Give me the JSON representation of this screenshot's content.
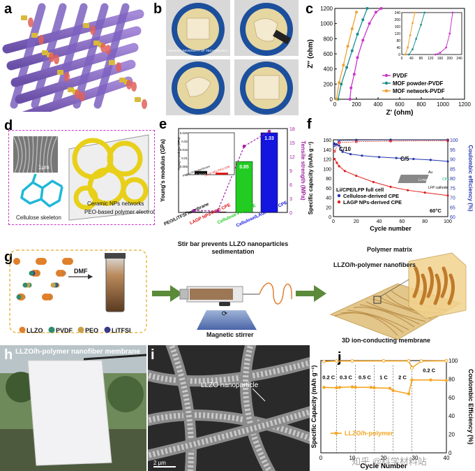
{
  "panel_letters": {
    "a": "a",
    "b": "b",
    "c": "c",
    "d": "d",
    "e": "e",
    "f": "f",
    "g": "g",
    "h": "h",
    "i": "i",
    "j": "j"
  },
  "panel_b": {
    "seal_text": "WUHAN UNIVERSITY OF TECHNOLOGY"
  },
  "panel_d": {
    "scale": "1μm",
    "cellulose_label": "Cellulose skeleton",
    "ceramic_label": "Ceramic NPs networks",
    "peo_label": "PEO-based polymer electrolyte"
  },
  "panel_g": {
    "legend": [
      "LLZO",
      "PVDF",
      "PEO",
      "LiTFSI"
    ],
    "dmf": "DMF",
    "stir_text": "Stir bar prevents LLZO nanoparticles sedimentation",
    "magnetic": "Magnetic stirrer",
    "polymer_matrix": "Polymer matrix",
    "nanofibers": "LLZO/h-polymer nanofibers",
    "membrane3d": "3D ion-conducting membrane",
    "colors": {
      "LLZO": "#e0802a",
      "PVDF": "#2e8c6e",
      "PEO": "#c8a04a",
      "LiTFSI": "#3a3a8a"
    }
  },
  "panel_h": {
    "title": "LLZO/h-polymer nanofiber membrane"
  },
  "panel_i": {
    "label": "LLZO nanoparticle",
    "scale": "2 μm"
  },
  "watermark": "知乎 @科学材料站",
  "chart_data": [
    {
      "panel": "c",
      "type": "line",
      "xlabel": "Z' (ohm)",
      "ylabel": "Z'' (ohm)",
      "xlim": [
        0,
        1200
      ],
      "ylim": [
        0,
        1200
      ],
      "xticks": [
        0,
        200,
        400,
        600,
        800,
        1000,
        1200
      ],
      "yticks": [
        0,
        200,
        400,
        600,
        800,
        1000,
        1200
      ],
      "series": [
        {
          "name": "PVDF",
          "color": "#cc33cc",
          "points": [
            [
              140,
              0
            ],
            [
              150,
              150
            ],
            [
              180,
              330
            ],
            [
              210,
              550
            ],
            [
              260,
              780
            ],
            [
              320,
              1000
            ],
            [
              380,
              1150
            ],
            [
              430,
              1200
            ]
          ]
        },
        {
          "name": "MOF powder-PVDF",
          "color": "#1a8f8f",
          "points": [
            [
              30,
              0
            ],
            [
              60,
              200
            ],
            [
              110,
              420
            ],
            [
              160,
              640
            ],
            [
              210,
              860
            ],
            [
              260,
              1050
            ],
            [
              300,
              1200
            ]
          ]
        },
        {
          "name": "MOF network-PVDF",
          "color": "#f0a030",
          "points": [
            [
              15,
              0
            ],
            [
              40,
              220
            ],
            [
              80,
              450
            ],
            [
              120,
              700
            ],
            [
              160,
              930
            ],
            [
              200,
              1150
            ]
          ]
        }
      ],
      "inset": {
        "xlim": [
          0,
          250
        ],
        "ylim": [
          0,
          240
        ],
        "xticks": [
          0,
          40,
          80,
          120,
          160,
          200,
          240
        ],
        "yticks": [
          0,
          20,
          40,
          60,
          80,
          100,
          120,
          140,
          160,
          180,
          200,
          220,
          240
        ],
        "series": [
          {
            "name": "PVDF",
            "points": [
              [
                140,
                0
              ],
              [
                160,
                10
              ],
              [
                185,
                40
              ],
              [
                200,
                120
              ],
              [
                212,
                240
              ]
            ]
          },
          {
            "name": "MOF powder-PVDF",
            "points": [
              [
                30,
                0
              ],
              [
                45,
                30
              ],
              [
                60,
                90
              ],
              [
                80,
                170
              ],
              [
                95,
                240
              ]
            ]
          },
          {
            "name": "MOF network-PVDF",
            "points": [
              [
                15,
                0
              ],
              [
                25,
                40
              ],
              [
                35,
                110
              ],
              [
                45,
                180
              ],
              [
                55,
                240
              ]
            ]
          }
        ]
      }
    },
    {
      "panel": "e",
      "type": "bar",
      "ylabel": "Young's modulus (GPa)",
      "ylabel2": "Tensile strength (MPa)",
      "ylim2": [
        0,
        18
      ],
      "yticks2": [
        0,
        3,
        6,
        9,
        12,
        15,
        18
      ],
      "categories": [
        "PEO/LiTFSI membrane",
        "LAGP NPs-PEO CPE",
        "Cellulose-PEO CPE",
        "Cellulose/LAGP-PEO CPE"
      ],
      "values": [
        0.0022,
        0.0012,
        0.85,
        1.33
      ],
      "value_labels": [
        "",
        "",
        "0.85",
        "1.33"
      ],
      "colors": [
        "#111111",
        "#e01010",
        "#22cc22",
        "#1515e0"
      ],
      "tensile": [
        0.4,
        0.3,
        14.2,
        17.4
      ],
      "inset": {
        "ylabel": "Young's modulus (GPa)",
        "yticks": [
          0,
          0.005,
          0.01,
          0.015,
          0.02,
          0.025
        ],
        "ylim": [
          0,
          0.025
        ],
        "values": [
          0.0022,
          0.0012
        ],
        "value_labels": [
          "0.0022",
          "0.0012"
        ],
        "categories": [
          "PEO/LiTFSI membrane",
          "LAGP NPs-PEO CPE"
        ]
      }
    },
    {
      "panel": "f",
      "type": "scatter",
      "title": "Li/CPE/LFP full cell",
      "xlabel": "Cycle number",
      "ylabel": "Specific capacity (mAh g⁻¹)",
      "ylabel2": "Coulombic efficiency (%)",
      "xlim": [
        0,
        100
      ],
      "ylim": [
        0,
        160
      ],
      "ylim2": [
        60,
        100
      ],
      "xticks": [
        0,
        20,
        40,
        60,
        80,
        100
      ],
      "yticks": [
        0,
        20,
        40,
        60,
        80,
        100,
        120,
        140,
        160
      ],
      "yticks2": [
        60,
        65,
        70,
        75,
        80,
        85,
        90,
        95,
        100
      ],
      "annotations": [
        "C/10",
        "C/5",
        "60°C",
        "Au",
        "CPE",
        "Li metal",
        "LFP cathode"
      ],
      "series": [
        {
          "name": "Cellulose-derived CPE",
          "color": "#2233aa",
          "capacity": [
            [
              1,
              152
            ],
            [
              3,
              150
            ],
            [
              5,
              148
            ],
            [
              8,
              135
            ],
            [
              15,
              130
            ],
            [
              25,
              127
            ],
            [
              40,
              124
            ],
            [
              55,
              122
            ],
            [
              70,
              120
            ],
            [
              85,
              118
            ],
            [
              100,
              115
            ]
          ],
          "efficiency": [
            [
              1,
              97
            ],
            [
              5,
              99.5
            ],
            [
              20,
              99.8
            ],
            [
              50,
              99.9
            ],
            [
              100,
              99.9
            ]
          ]
        },
        {
          "name": "LAGP NPs-derived CPE",
          "color": "#e02020",
          "capacity": [
            [
              1,
              120
            ],
            [
              3,
              112
            ],
            [
              5,
              105
            ],
            [
              10,
              95
            ],
            [
              20,
              85
            ],
            [
              35,
              72
            ],
            [
              50,
              62
            ],
            [
              65,
              55
            ],
            [
              80,
              50
            ],
            [
              100,
              44
            ]
          ],
          "efficiency": [
            [
              1,
              94
            ],
            [
              5,
              98.5
            ],
            [
              20,
              99
            ],
            [
              50,
              99.3
            ],
            [
              100,
              99.5
            ]
          ]
        }
      ]
    },
    {
      "panel": "j",
      "type": "scatter",
      "xlabel": "Cycle Number",
      "ylabel": "Specific Capacity (mAh g⁻¹)",
      "ylabel2": "Coulombic Efficiency (%)",
      "xlim": [
        0,
        40
      ],
      "ylim": [
        0,
        200
      ],
      "ylim2": [
        0,
        100
      ],
      "xticks": [
        0,
        10,
        20,
        30,
        40
      ],
      "yticks": [
        0,
        50,
        100,
        150,
        200
      ],
      "yticks2": [
        0,
        20,
        40,
        60,
        80,
        100
      ],
      "rate_labels": [
        "0.2 C",
        "0.3 C",
        "0.5 C",
        "1 C",
        "2 C",
        "0.2 C"
      ],
      "segments": [
        [
          0,
          5
        ],
        [
          5,
          11
        ],
        [
          11,
          17
        ],
        [
          17,
          23
        ],
        [
          23,
          29
        ],
        [
          29,
          40
        ]
      ],
      "series": [
        {
          "name": "LLZO/h-polymer",
          "color": "#f5a623",
          "capacity": [
            [
              1,
              142
            ],
            [
              5,
              141
            ],
            [
              6,
              142
            ],
            [
              10,
              143
            ],
            [
              11,
              142
            ],
            [
              16,
              142
            ],
            [
              17,
              141
            ],
            [
              22,
              140
            ],
            [
              23,
              135
            ],
            [
              28,
              128
            ],
            [
              29,
              158
            ],
            [
              35,
              158
            ],
            [
              40,
              157
            ]
          ],
          "efficiency": [
            [
              1,
              99
            ],
            [
              5,
              99.5
            ],
            [
              10,
              99.5
            ],
            [
              20,
              99.6
            ],
            [
              28,
              99.6
            ],
            [
              29,
              92
            ],
            [
              32,
              99.5
            ],
            [
              40,
              99.7
            ]
          ]
        }
      ]
    }
  ]
}
